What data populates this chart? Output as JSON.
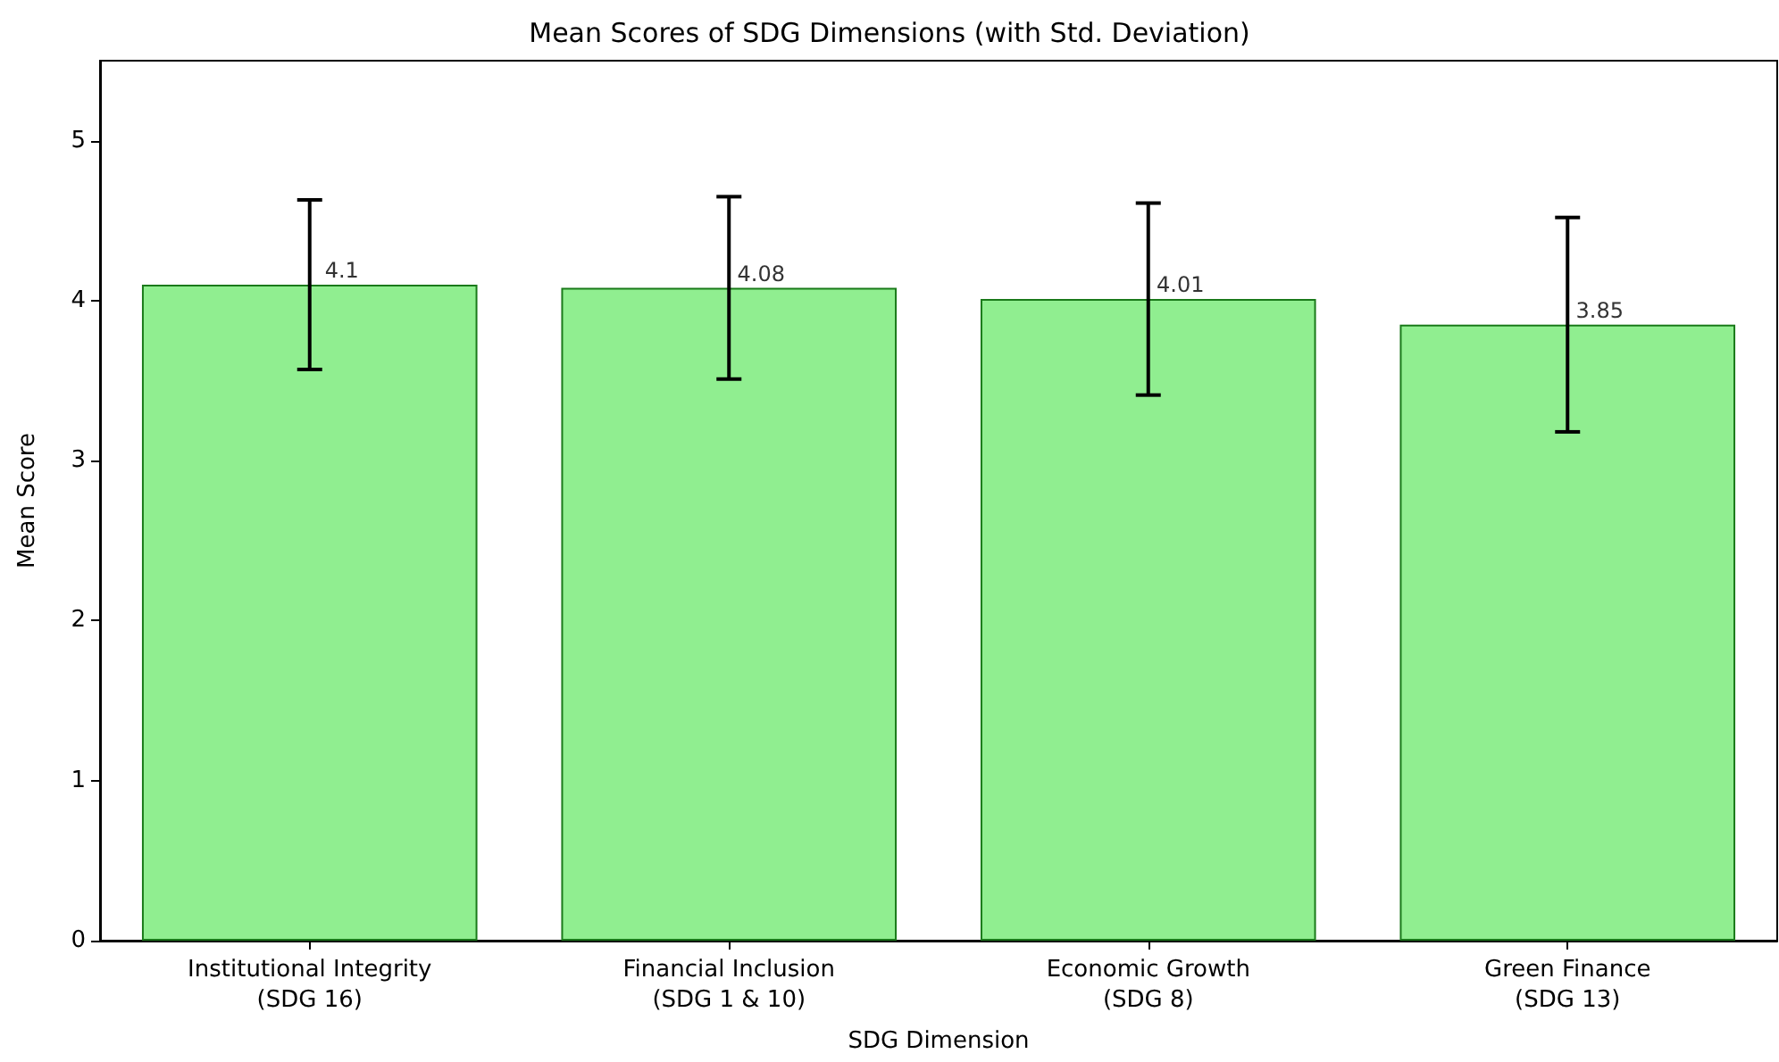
{
  "chart_data": {
    "type": "bar",
    "title": "Mean Scores of SDG Dimensions (with Std. Deviation)",
    "xlabel": "SDG Dimension",
    "ylabel": "Mean Score",
    "categories": [
      "Institutional Integrity\n(SDG 16)",
      "Financial Inclusion\n(SDG 1 & 10)",
      "Economic Growth\n(SDG 8)",
      "Green Finance\n(SDG 13)"
    ],
    "values": [
      4.1,
      4.08,
      4.01,
      3.85
    ],
    "errors": [
      0.53,
      0.57,
      0.6,
      0.67
    ],
    "color": "#90ee90",
    "data_labels": true,
    "grid": false,
    "ylim": [
      0,
      5.5
    ],
    "yticks": [
      0,
      1,
      2,
      3,
      4,
      5
    ]
  }
}
